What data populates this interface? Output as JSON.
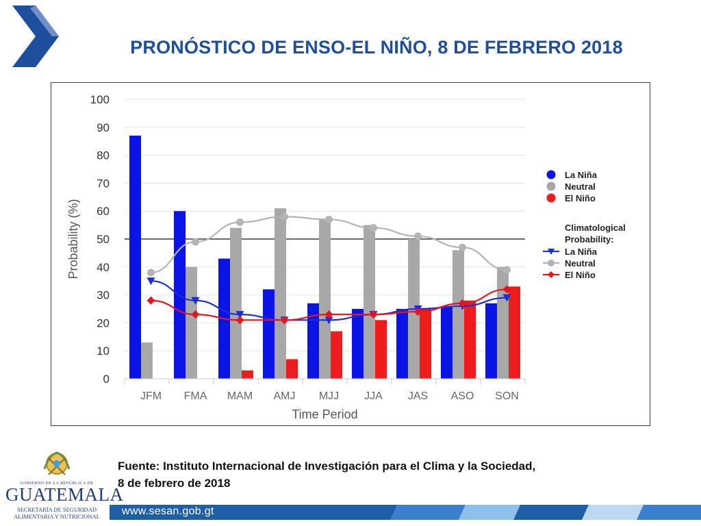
{
  "slide": {
    "title": "PRONÓSTICO DE ENSO-EL NIÑO, 8 DE FEBRERO 2018",
    "source_line1": "Fuente: Instituto Internacional de Investigación para el Clima y la Sociedad,",
    "source_line2": "8 de febrero de 2018"
  },
  "logo": {
    "government": "GOBIERNO DE LA REPÚBLICA DE",
    "country": "GUATEMALA",
    "secretariat_line1": "SECRETARÍA DE SEGURIDAD",
    "secretariat_line2": "ALIMENTARIA Y NUTRICIONAL"
  },
  "footer": {
    "url": "www.sesan.gob.gt"
  },
  "colors": {
    "title": "#1f4e9c",
    "la_nina": "#0a14e6",
    "neutral": "#a8a8a8",
    "el_nino": "#ee1c1c",
    "la_nina_line": "#1a2fd6",
    "neutral_line": "#b4b4b4",
    "el_nino_line": "#e8141e",
    "footer_band": "#1f5faa"
  },
  "chart_data": {
    "type": "bar",
    "xlabel": "Time Period",
    "ylabel": "Probability (%)",
    "ylim": [
      0,
      100
    ],
    "yticks": [
      0,
      10,
      20,
      30,
      40,
      50,
      60,
      70,
      80,
      90,
      100
    ],
    "reference_line": 50,
    "grid": true,
    "legend_position": "right",
    "categories": [
      "JFM",
      "FMA",
      "MAM",
      "AMJ",
      "MJJ",
      "JJA",
      "JAS",
      "ASO",
      "SON"
    ],
    "series": [
      {
        "name": "La Niña",
        "values": [
          87,
          60,
          43,
          32,
          27,
          25,
          25,
          26,
          27
        ]
      },
      {
        "name": "Neutral",
        "values": [
          13,
          40,
          54,
          61,
          57,
          55,
          50,
          46,
          40
        ]
      },
      {
        "name": "El Niño",
        "values": [
          0,
          0,
          3,
          7,
          17,
          21,
          25,
          28,
          33
        ]
      }
    ],
    "climatology_title": "Climatological Probability:",
    "climatology": [
      {
        "name": "La Niña",
        "marker": "triangle-down",
        "values": [
          35,
          28,
          23,
          21,
          21,
          23,
          25,
          26,
          29
        ]
      },
      {
        "name": "Neutral",
        "marker": "circle",
        "values": [
          38,
          49,
          56,
          58,
          57,
          54,
          51,
          47,
          39
        ]
      },
      {
        "name": "El Niño",
        "marker": "diamond",
        "values": [
          28,
          23,
          21,
          21,
          23,
          23,
          24,
          27,
          32
        ]
      }
    ]
  }
}
